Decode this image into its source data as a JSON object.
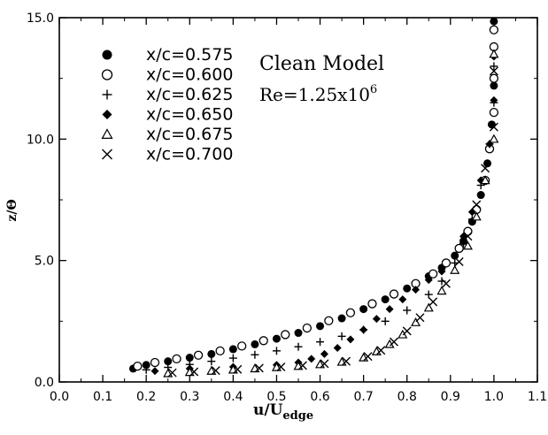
{
  "chart_data": {
    "type": "scatter",
    "title": "",
    "xlabel_main": "u/U",
    "xlabel_sub": "edge",
    "ylabel": "z/Θ",
    "xlim": [
      0.0,
      1.1
    ],
    "ylim": [
      0.0,
      15.0
    ],
    "x_ticks": [
      "0.0",
      "0.1",
      "0.2",
      "0.3",
      "0.4",
      "0.5",
      "0.6",
      "0.7",
      "0.8",
      "0.9",
      "1.0",
      "1.1"
    ],
    "y_ticks": [
      "0.0",
      "5.0",
      "10.0",
      "15.0"
    ],
    "grid": false,
    "legend_position": "top-left",
    "annotations": {
      "model": "Clean Model",
      "reynolds_base": "Re=1.25x10",
      "reynolds_exp": "6"
    },
    "series": [
      {
        "name": "x/c=0.575",
        "marker": "filled-circle",
        "x": [
          0.17,
          0.2,
          0.25,
          0.3,
          0.35,
          0.4,
          0.45,
          0.5,
          0.55,
          0.6,
          0.65,
          0.7,
          0.75,
          0.8,
          0.85,
          0.88,
          0.91,
          0.93,
          0.95,
          0.97,
          0.985,
          0.995,
          1.0,
          1.0,
          1.0
        ],
        "y": [
          0.55,
          0.7,
          0.85,
          1.0,
          1.15,
          1.35,
          1.55,
          1.78,
          2.02,
          2.3,
          2.62,
          3.0,
          3.4,
          3.85,
          4.35,
          4.7,
          5.2,
          5.8,
          6.6,
          7.7,
          9.0,
          10.6,
          12.2,
          13.8,
          14.85
        ]
      },
      {
        "name": "x/c=0.600",
        "marker": "open-circle",
        "x": [
          0.18,
          0.22,
          0.27,
          0.32,
          0.37,
          0.42,
          0.47,
          0.52,
          0.57,
          0.62,
          0.67,
          0.72,
          0.77,
          0.82,
          0.86,
          0.89,
          0.92,
          0.94,
          0.96,
          0.98,
          0.99,
          1.0,
          1.0,
          1.0,
          1.0
        ],
        "y": [
          0.65,
          0.8,
          0.95,
          1.1,
          1.28,
          1.48,
          1.7,
          1.95,
          2.22,
          2.52,
          2.85,
          3.22,
          3.62,
          4.05,
          4.45,
          4.9,
          5.5,
          6.2,
          7.1,
          8.3,
          9.6,
          11.1,
          12.5,
          13.8,
          14.5
        ]
      },
      {
        "name": "x/c=0.625",
        "marker": "plus",
        "x": [
          0.2,
          0.25,
          0.3,
          0.35,
          0.4,
          0.45,
          0.5,
          0.55,
          0.6,
          0.65,
          0.7,
          0.75,
          0.8,
          0.85,
          0.88,
          0.91,
          0.93,
          0.95,
          0.97,
          0.99,
          1.0,
          1.0
        ],
        "y": [
          0.5,
          0.6,
          0.72,
          0.85,
          0.98,
          1.12,
          1.28,
          1.45,
          1.65,
          1.88,
          2.15,
          2.5,
          2.95,
          3.6,
          4.15,
          4.9,
          5.7,
          6.7,
          8.1,
          9.8,
          11.5,
          13.0
        ]
      },
      {
        "name": "x/c=0.650",
        "marker": "filled-diamond",
        "x": [
          0.22,
          0.3,
          0.4,
          0.5,
          0.55,
          0.58,
          0.61,
          0.64,
          0.67,
          0.7,
          0.73,
          0.76,
          0.79,
          0.82,
          0.85,
          0.88,
          0.91,
          0.93,
          0.95,
          0.97,
          0.99,
          1.0,
          1.0
        ],
        "y": [
          0.45,
          0.55,
          0.62,
          0.7,
          0.8,
          0.95,
          1.15,
          1.4,
          1.75,
          2.15,
          2.6,
          3.0,
          3.4,
          3.8,
          4.2,
          4.55,
          5.2,
          6.0,
          7.0,
          8.3,
          9.8,
          11.6,
          13.4
        ]
      },
      {
        "name": "x/c=0.675",
        "marker": "open-triangle",
        "x": [
          0.25,
          0.3,
          0.35,
          0.4,
          0.45,
          0.5,
          0.55,
          0.6,
          0.65,
          0.7,
          0.73,
          0.76,
          0.79,
          0.82,
          0.85,
          0.88,
          0.91,
          0.94,
          0.96,
          0.98,
          1.0,
          1.0
        ],
        "y": [
          0.35,
          0.4,
          0.45,
          0.5,
          0.55,
          0.6,
          0.65,
          0.72,
          0.82,
          1.0,
          1.25,
          1.55,
          1.95,
          2.45,
          3.05,
          3.75,
          4.6,
          5.6,
          6.8,
          8.3,
          10.0,
          13.5
        ]
      },
      {
        "name": "x/c=0.700",
        "marker": "cross",
        "x": [
          0.26,
          0.31,
          0.36,
          0.41,
          0.46,
          0.51,
          0.56,
          0.61,
          0.66,
          0.71,
          0.74,
          0.77,
          0.8,
          0.83,
          0.86,
          0.89,
          0.92,
          0.94,
          0.96,
          0.98,
          1.0,
          1.0
        ],
        "y": [
          0.38,
          0.42,
          0.47,
          0.52,
          0.57,
          0.62,
          0.68,
          0.75,
          0.85,
          1.05,
          1.3,
          1.65,
          2.1,
          2.65,
          3.3,
          4.05,
          4.95,
          6.0,
          7.3,
          8.8,
          10.5,
          12.8
        ]
      }
    ]
  }
}
